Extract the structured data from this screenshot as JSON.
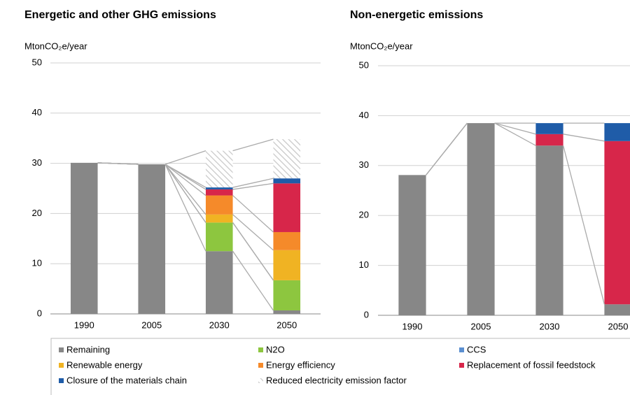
{
  "chart_data": [
    {
      "type": "bar",
      "stacked": true,
      "title": "Energetic and other GHG emissions",
      "y_label": "MtonCO₂e/year",
      "categories": [
        "1990",
        "2005",
        "2030",
        "2050"
      ],
      "ylim": [
        0,
        50
      ],
      "yticks": [
        0,
        10,
        20,
        30,
        40,
        50
      ],
      "grid": true,
      "series": [
        {
          "name": "Remaining",
          "color": "#878787",
          "values": [
            30.1,
            29.8,
            12.5,
            0.7
          ]
        },
        {
          "name": "N2O",
          "color": "#8dc63f",
          "values": [
            0,
            0,
            5.7,
            6.0
          ]
        },
        {
          "name": "CCS",
          "color": "#5b8fd0",
          "values": [
            0,
            0,
            0,
            0
          ]
        },
        {
          "name": "Renewable energy",
          "color": "#f0b323",
          "values": [
            0,
            0,
            1.6,
            6.0
          ]
        },
        {
          "name": "Energy efficiency",
          "color": "#f58a2a",
          "values": [
            0,
            0,
            3.8,
            3.6
          ]
        },
        {
          "name": "Replacement of fossil feedstock",
          "color": "#d7264a",
          "values": [
            0,
            0,
            1.2,
            9.7
          ]
        },
        {
          "name": "Closure of the materials chain",
          "color": "#1f5ca8",
          "values": [
            0,
            0,
            0.4,
            1.0
          ]
        },
        {
          "name": "Reduced electricity emission factor",
          "color": "hatch",
          "values": [
            0,
            0,
            7.3,
            7.8
          ]
        }
      ]
    },
    {
      "type": "bar",
      "stacked": true,
      "title": "Non-energetic emissions",
      "y_label": "MtonCO₂e/year",
      "categories": [
        "1990",
        "2005",
        "2030",
        "2050"
      ],
      "ylim": [
        0,
        50
      ],
      "yticks": [
        0,
        10,
        20,
        30,
        40,
        50
      ],
      "grid": true,
      "series": [
        {
          "name": "Remaining",
          "color": "#878787",
          "values": [
            28.1,
            38.5,
            34.0,
            2.2
          ]
        },
        {
          "name": "Replacement of fossil feedstock",
          "color": "#d7264a",
          "values": [
            0,
            0,
            2.3,
            32.7
          ]
        },
        {
          "name": "Closure of the materials chain",
          "color": "#1f5ca8",
          "values": [
            0,
            0,
            2.2,
            3.6
          ]
        }
      ]
    }
  ]
}
